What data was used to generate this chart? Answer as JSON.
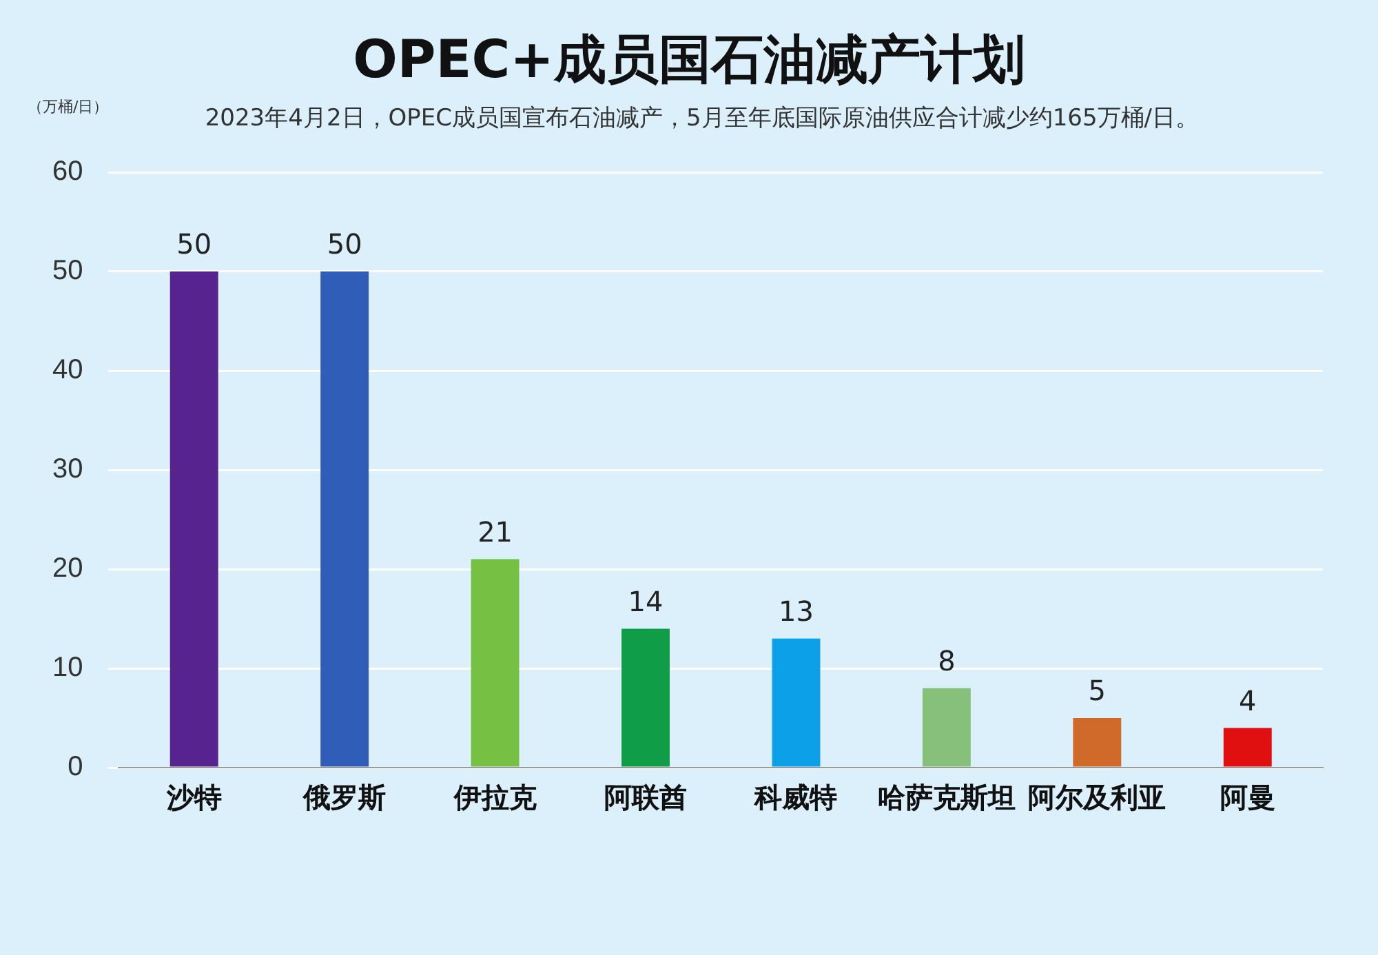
{
  "chart_data": {
    "type": "bar",
    "title": "OPEC+成员国石油减产计划",
    "subtitle": "2023年4月2日，OPEC成员国宣布石油减产，5月至年底国际原油供应合计减少约165万桶/日。",
    "ylabel": "（万桶/日）",
    "categories": [
      "沙特",
      "俄罗斯",
      "伊拉克",
      "阿联酋",
      "科威特",
      "哈萨克斯坦",
      "阿尔及利亚",
      "阿曼"
    ],
    "values": [
      50,
      50,
      21,
      14,
      13,
      8,
      5,
      4
    ],
    "colors": [
      "#56238f",
      "#2f5db8",
      "#76c043",
      "#0f9d48",
      "#0ba0e8",
      "#86c07a",
      "#d06a2a",
      "#e01010"
    ],
    "ylim": [
      0,
      60
    ],
    "yticks": [
      0,
      10,
      20,
      30,
      40,
      50,
      60
    ],
    "grid": "y",
    "data_labels": true,
    "legend": false
  }
}
